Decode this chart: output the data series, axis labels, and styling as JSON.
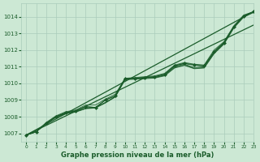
{
  "title": "",
  "xlabel": "Graphe pression niveau de la mer (hPa)",
  "background_color": "#cce8d4",
  "grid_color": "#aaccbb",
  "line_color": "#1a5c2a",
  "text_color": "#1a5c2a",
  "xlim": [
    -0.5,
    23
  ],
  "ylim": [
    1006.5,
    1014.8
  ],
  "yticks": [
    1007,
    1008,
    1009,
    1010,
    1011,
    1012,
    1013,
    1014
  ],
  "xticks": [
    0,
    1,
    2,
    3,
    4,
    5,
    6,
    7,
    8,
    9,
    10,
    11,
    12,
    13,
    14,
    15,
    16,
    17,
    18,
    19,
    20,
    21,
    22,
    23
  ],
  "straight_line_1": [
    [
      0,
      1006.9
    ],
    [
      23,
      1014.3
    ]
  ],
  "straight_line_2": [
    [
      0,
      1006.9
    ],
    [
      23,
      1013.5
    ]
  ],
  "bundle_series": [
    [
      1006.9,
      1007.1,
      1007.6,
      1008.0,
      1008.2,
      1008.3,
      1008.5,
      1008.55,
      1008.85,
      1009.2,
      1010.3,
      1010.3,
      1010.35,
      1010.35,
      1010.5,
      1011.0,
      1011.15,
      1010.95,
      1011.0,
      1011.85,
      1012.4,
      1013.4,
      1014.05,
      1014.3
    ],
    [
      1006.9,
      1007.1,
      1007.6,
      1008.0,
      1008.25,
      1008.35,
      1008.6,
      1008.55,
      1009.0,
      1009.25,
      1010.3,
      1010.3,
      1010.35,
      1010.4,
      1010.55,
      1011.05,
      1011.2,
      1011.1,
      1011.05,
      1011.9,
      1012.45,
      1013.4,
      1014.05,
      1014.3
    ],
    [
      1006.9,
      1007.1,
      1007.65,
      1008.05,
      1008.3,
      1008.4,
      1008.7,
      1008.7,
      1009.05,
      1009.35,
      1010.3,
      1010.35,
      1010.4,
      1010.45,
      1010.6,
      1011.1,
      1011.25,
      1011.15,
      1011.1,
      1012.0,
      1012.5,
      1013.45,
      1014.1,
      1014.3
    ],
    [
      1006.9,
      1007.1,
      1007.6,
      1008.0,
      1008.2,
      1008.3,
      1008.5,
      1008.55,
      1008.85,
      1009.2,
      1010.25,
      1010.28,
      1010.32,
      1010.35,
      1010.48,
      1010.95,
      1011.1,
      1010.9,
      1010.95,
      1011.8,
      1012.38,
      1013.35,
      1014.0,
      1014.28
    ],
    [
      1006.9,
      1007.1,
      1007.58,
      1007.95,
      1008.18,
      1008.28,
      1008.48,
      1008.52,
      1008.82,
      1009.18,
      1010.22,
      1010.25,
      1010.28,
      1010.32,
      1010.45,
      1010.92,
      1011.08,
      1010.88,
      1010.92,
      1011.78,
      1012.35,
      1013.32,
      1013.98,
      1014.25
    ]
  ],
  "marker_series_x": [
    0,
    1,
    2,
    3,
    4,
    5,
    6,
    7,
    8,
    9,
    10,
    11,
    12,
    13,
    14,
    15,
    16,
    17,
    18,
    19,
    20,
    21,
    22,
    23
  ],
  "marker_series_y": [
    1006.9,
    1007.1,
    1007.6,
    1008.0,
    1008.25,
    1008.35,
    1008.6,
    1008.55,
    1009.0,
    1009.25,
    1010.3,
    1010.3,
    1010.35,
    1010.4,
    1010.55,
    1011.05,
    1011.2,
    1011.1,
    1011.05,
    1011.9,
    1012.45,
    1013.4,
    1014.05,
    1014.3
  ]
}
